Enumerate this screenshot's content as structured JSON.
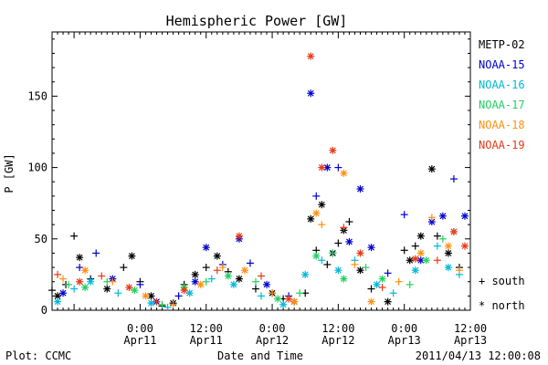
{
  "chart_data": {
    "type": "scatter",
    "title": "Hemispheric Power [GW]",
    "ylabel": "P [GW]",
    "xlabel": "Date and Time",
    "ylim": [
      0,
      195
    ],
    "xlim": [
      "2011-04-10 08:00",
      "2011-04-13 12:00"
    ],
    "yticks": [
      0,
      50,
      100,
      150
    ],
    "xticks": [
      {
        "x": "2011-04-11 00:00",
        "label1": "0:00",
        "label2": "Apr11"
      },
      {
        "x": "2011-04-11 12:00",
        "label1": "12:00",
        "label2": "Apr11"
      },
      {
        "x": "2011-04-12 00:00",
        "label1": "0:00",
        "label2": "Apr12"
      },
      {
        "x": "2011-04-12 12:00",
        "label1": "12:00",
        "label2": "Apr12"
      },
      {
        "x": "2011-04-13 00:00",
        "label1": "0:00",
        "label2": "Apr13"
      },
      {
        "x": "2011-04-13 12:00",
        "label1": "12:00",
        "label2": "Apr13"
      }
    ],
    "grid": false,
    "legend_position": "right",
    "marker_legend": [
      {
        "symbol": "+",
        "label": "south"
      },
      {
        "symbol": "*",
        "label": "north"
      }
    ],
    "series": [
      {
        "name": "METP-02",
        "color": "#000000",
        "points": [
          [
            "2011-04-10 08:00",
            14,
            "+"
          ],
          [
            "2011-04-10 09:00",
            10,
            "*"
          ],
          [
            "2011-04-10 10:30",
            18,
            "+"
          ],
          [
            "2011-04-10 12:00",
            52,
            "+"
          ],
          [
            "2011-04-10 13:00",
            37,
            "*"
          ],
          [
            "2011-04-10 15:00",
            22,
            "+"
          ],
          [
            "2011-04-10 18:00",
            15,
            "*"
          ],
          [
            "2011-04-10 21:00",
            30,
            "+"
          ],
          [
            "2011-04-10 22:30",
            38,
            "*"
          ],
          [
            "2011-04-11 00:00",
            20,
            "+"
          ],
          [
            "2011-04-11 02:00",
            10,
            "*"
          ],
          [
            "2011-04-11 04:00",
            3,
            "+"
          ],
          [
            "2011-04-11 06:00",
            5,
            "*"
          ],
          [
            "2011-04-11 08:00",
            18,
            "+"
          ],
          [
            "2011-04-11 10:00",
            25,
            "*"
          ],
          [
            "2011-04-11 12:00",
            30,
            "+"
          ],
          [
            "2011-04-11 14:00",
            38,
            "*"
          ],
          [
            "2011-04-11 16:00",
            27,
            "+"
          ],
          [
            "2011-04-11 18:00",
            22,
            "*"
          ],
          [
            "2011-04-11 21:00",
            15,
            "+"
          ],
          [
            "2011-04-12 00:00",
            12,
            "*"
          ],
          [
            "2011-04-12 02:00",
            8,
            "+"
          ],
          [
            "2011-04-12 04:00",
            6,
            "*"
          ],
          [
            "2011-04-12 06:00",
            12,
            "+"
          ],
          [
            "2011-04-12 07:00",
            64,
            "*"
          ],
          [
            "2011-04-12 08:00",
            42,
            "+"
          ],
          [
            "2011-04-12 09:00",
            74,
            "*"
          ],
          [
            "2011-04-12 10:00",
            32,
            "+"
          ],
          [
            "2011-04-12 11:00",
            40,
            "*"
          ],
          [
            "2011-04-12 12:00",
            47,
            "+"
          ],
          [
            "2011-04-12 13:00",
            56,
            "*"
          ],
          [
            "2011-04-12 14:00",
            62,
            "+"
          ],
          [
            "2011-04-12 16:00",
            28,
            "*"
          ],
          [
            "2011-04-12 18:00",
            15,
            "+"
          ],
          [
            "2011-04-12 21:00",
            6,
            "*"
          ],
          [
            "2011-04-13 00:00",
            42,
            "+"
          ],
          [
            "2011-04-13 01:00",
            35,
            "*"
          ],
          [
            "2011-04-13 02:00",
            45,
            "+"
          ],
          [
            "2011-04-13 03:00",
            52,
            "*"
          ],
          [
            "2011-04-13 05:00",
            99,
            "*"
          ],
          [
            "2011-04-13 06:00",
            52,
            "+"
          ],
          [
            "2011-04-13 08:00",
            40,
            "*"
          ],
          [
            "2011-04-13 10:00",
            30,
            "+"
          ]
        ]
      },
      {
        "name": "NOAA-15",
        "color": "#0000d0",
        "points": [
          [
            "2011-04-10 10:00",
            12,
            "*"
          ],
          [
            "2011-04-10 13:00",
            30,
            "+"
          ],
          [
            "2011-04-10 16:00",
            40,
            "+"
          ],
          [
            "2011-04-10 19:00",
            22,
            "*"
          ],
          [
            "2011-04-11 00:00",
            18,
            "+"
          ],
          [
            "2011-04-11 03:00",
            6,
            "*"
          ],
          [
            "2011-04-11 07:00",
            10,
            "+"
          ],
          [
            "2011-04-11 10:00",
            20,
            "*"
          ],
          [
            "2011-04-11 12:00",
            44,
            "*"
          ],
          [
            "2011-04-11 15:00",
            32,
            "+"
          ],
          [
            "2011-04-11 18:00",
            50,
            "*"
          ],
          [
            "2011-04-11 20:00",
            33,
            "+"
          ],
          [
            "2011-04-11 23:00",
            18,
            "*"
          ],
          [
            "2011-04-12 03:00",
            10,
            "+"
          ],
          [
            "2011-04-12 07:00",
            152,
            "*"
          ],
          [
            "2011-04-12 08:00",
            80,
            "+"
          ],
          [
            "2011-04-12 10:00",
            100,
            "*"
          ],
          [
            "2011-04-12 12:00",
            100,
            "+"
          ],
          [
            "2011-04-12 14:00",
            48,
            "*"
          ],
          [
            "2011-04-12 16:00",
            85,
            "*"
          ],
          [
            "2011-04-12 18:00",
            44,
            "*"
          ],
          [
            "2011-04-12 21:00",
            26,
            "+"
          ],
          [
            "2011-04-13 00:00",
            67,
            "+"
          ],
          [
            "2011-04-13 03:00",
            35,
            "*"
          ],
          [
            "2011-04-13 05:00",
            62,
            "*"
          ],
          [
            "2011-04-13 07:00",
            66,
            "*"
          ],
          [
            "2011-04-13 09:00",
            92,
            "+"
          ],
          [
            "2011-04-13 11:00",
            66,
            "*"
          ]
        ]
      },
      {
        "name": "NOAA-16",
        "color": "#00b8d8",
        "points": [
          [
            "2011-04-10 09:00",
            6,
            "*"
          ],
          [
            "2011-04-10 12:00",
            15,
            "+"
          ],
          [
            "2011-04-10 15:00",
            20,
            "*"
          ],
          [
            "2011-04-10 20:00",
            12,
            "+"
          ],
          [
            "2011-04-11 02:00",
            5,
            "*"
          ],
          [
            "2011-04-11 05:00",
            2,
            "+"
          ],
          [
            "2011-04-11 09:00",
            12,
            "*"
          ],
          [
            "2011-04-11 13:00",
            22,
            "+"
          ],
          [
            "2011-04-11 17:00",
            18,
            "*"
          ],
          [
            "2011-04-11 22:00",
            10,
            "+"
          ],
          [
            "2011-04-12 02:00",
            4,
            "*"
          ],
          [
            "2011-04-12 06:00",
            25,
            "*"
          ],
          [
            "2011-04-12 09:00",
            35,
            "+"
          ],
          [
            "2011-04-12 12:00",
            28,
            "*"
          ],
          [
            "2011-04-12 15:00",
            35,
            "+"
          ],
          [
            "2011-04-12 19:00",
            18,
            "*"
          ],
          [
            "2011-04-12 22:00",
            12,
            "+"
          ],
          [
            "2011-04-13 02:00",
            28,
            "*"
          ],
          [
            "2011-04-13 06:00",
            45,
            "+"
          ],
          [
            "2011-04-13 08:00",
            30,
            "*"
          ],
          [
            "2011-04-13 10:00",
            25,
            "+"
          ]
        ]
      },
      {
        "name": "NOAA-17",
        "color": "#20d060",
        "points": [
          [
            "2011-04-10 11:00",
            18,
            "+"
          ],
          [
            "2011-04-10 14:00",
            16,
            "*"
          ],
          [
            "2011-04-10 18:00",
            20,
            "+"
          ],
          [
            "2011-04-10 23:00",
            14,
            "*"
          ],
          [
            "2011-04-11 04:00",
            4,
            "+"
          ],
          [
            "2011-04-11 08:00",
            16,
            "*"
          ],
          [
            "2011-04-11 12:00",
            20,
            "+"
          ],
          [
            "2011-04-11 16:00",
            24,
            "*"
          ],
          [
            "2011-04-11 21:00",
            20,
            "+"
          ],
          [
            "2011-04-12 01:00",
            8,
            "*"
          ],
          [
            "2011-04-12 05:00",
            12,
            "+"
          ],
          [
            "2011-04-12 08:00",
            38,
            "*"
          ],
          [
            "2011-04-12 11:00",
            40,
            "+"
          ],
          [
            "2011-04-12 13:00",
            22,
            "*"
          ],
          [
            "2011-04-12 17:00",
            30,
            "+"
          ],
          [
            "2011-04-12 20:00",
            22,
            "*"
          ],
          [
            "2011-04-13 01:00",
            18,
            "+"
          ],
          [
            "2011-04-13 04:00",
            35,
            "*"
          ],
          [
            "2011-04-13 07:00",
            50,
            "+"
          ],
          [
            "2011-04-13 09:00",
            55,
            "*"
          ]
        ]
      },
      {
        "name": "NOAA-18",
        "color": "#ff9010",
        "points": [
          [
            "2011-04-10 10:00",
            22,
            "+"
          ],
          [
            "2011-04-10 14:00",
            28,
            "*"
          ],
          [
            "2011-04-10 19:00",
            20,
            "+"
          ],
          [
            "2011-04-11 01:00",
            10,
            "*"
          ],
          [
            "2011-04-11 06:00",
            4,
            "+"
          ],
          [
            "2011-04-11 11:00",
            18,
            "*"
          ],
          [
            "2011-04-11 15:00",
            30,
            "+"
          ],
          [
            "2011-04-11 19:00",
            28,
            "*"
          ],
          [
            "2011-04-12 00:00",
            12,
            "+"
          ],
          [
            "2011-04-12 04:00",
            6,
            "*"
          ],
          [
            "2011-04-12 08:00",
            68,
            "*"
          ],
          [
            "2011-04-12 09:00",
            60,
            "+"
          ],
          [
            "2011-04-12 13:00",
            96,
            "*"
          ],
          [
            "2011-04-12 15:00",
            32,
            "+"
          ],
          [
            "2011-04-12 18:00",
            6,
            "*"
          ],
          [
            "2011-04-12 23:00",
            20,
            "+"
          ],
          [
            "2011-04-13 03:00",
            40,
            "*"
          ],
          [
            "2011-04-13 05:00",
            65,
            "+"
          ],
          [
            "2011-04-13 08:00",
            45,
            "*"
          ],
          [
            "2011-04-13 10:00",
            28,
            "+"
          ]
        ]
      },
      {
        "name": "NOAA-19",
        "color": "#e83818",
        "points": [
          [
            "2011-04-10 09:00",
            25,
            "+"
          ],
          [
            "2011-04-10 13:00",
            20,
            "*"
          ],
          [
            "2011-04-10 17:00",
            24,
            "+"
          ],
          [
            "2011-04-10 22:00",
            16,
            "*"
          ],
          [
            "2011-04-11 03:00",
            6,
            "+"
          ],
          [
            "2011-04-11 08:00",
            14,
            "*"
          ],
          [
            "2011-04-11 14:00",
            28,
            "+"
          ],
          [
            "2011-04-11 18:00",
            52,
            "*"
          ],
          [
            "2011-04-11 22:00",
            24,
            "+"
          ],
          [
            "2011-04-12 03:00",
            8,
            "*"
          ],
          [
            "2011-04-12 07:00",
            178,
            "*"
          ],
          [
            "2011-04-12 09:00",
            100,
            "*"
          ],
          [
            "2011-04-12 11:00",
            112,
            "*"
          ],
          [
            "2011-04-12 13:00",
            58,
            "+"
          ],
          [
            "2011-04-12 16:00",
            40,
            "*"
          ],
          [
            "2011-04-12 20:00",
            16,
            "+"
          ],
          [
            "2011-04-13 02:00",
            36,
            "*"
          ],
          [
            "2011-04-13 06:00",
            35,
            "+"
          ],
          [
            "2011-04-13 09:00",
            55,
            "*"
          ],
          [
            "2011-04-13 11:00",
            45,
            "*"
          ]
        ]
      }
    ]
  },
  "footer": {
    "left": "Plot: CCMC",
    "right": "2011/04/13 12:00:08"
  }
}
